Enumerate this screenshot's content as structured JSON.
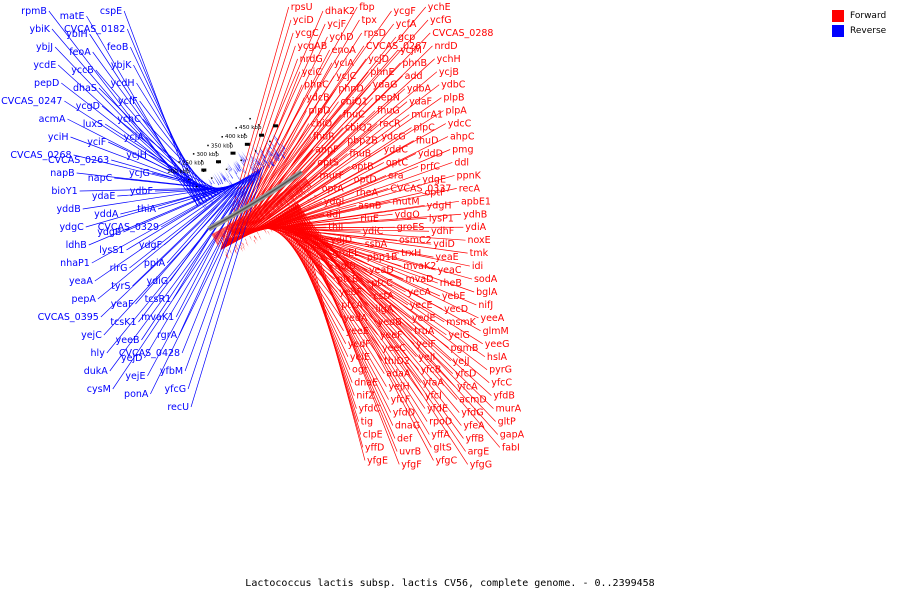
{
  "legend": {
    "forward": {
      "label": "Forward",
      "color": "#ff0000"
    },
    "reverse": {
      "label": "Reverse",
      "color": "#0000ff"
    }
  },
  "caption": "Lactococcus lactis subsp. lactis CV56, complete genome. - 0..2399458",
  "ruler": [
    "200 kbp",
    "250 kbp",
    "300 kbp",
    "350 kbp",
    "400 kbp",
    "450 kbp"
  ],
  "forward_genes": [
    "rpsU",
    "dhaK2",
    "fbp",
    "ycgF",
    "ychE",
    "yciD",
    "ycjF",
    "tpx",
    "ycfA",
    "ycfG",
    "ycgC",
    "ychD",
    "rpsD",
    "gcp",
    "CVCAS_0288",
    "ycgAB",
    "enoA",
    "CVCAS_0267",
    "ycjM",
    "nrdD",
    "nrdG",
    "yciA",
    "ycjD",
    "phnB",
    "ychH",
    "yciC",
    "ycjC",
    "phnE",
    "add",
    "ycjB",
    "phnC",
    "phnD",
    "ydaG",
    "ydbA",
    "ydbC",
    "ydcB",
    "cbiQ1",
    "pepN",
    "ydaF",
    "plpB",
    "plpD",
    "fhuC",
    "fhuG",
    "murA1",
    "plpA",
    "cbiO",
    "cbiQ2",
    "recR",
    "plpC",
    "ydcC",
    "fhuR",
    "pbp2B",
    "ydcG",
    "fhuD",
    "ahpC",
    "ahpF",
    "fhuB",
    "yddC",
    "yddD",
    "pmg",
    "optS",
    "optB",
    "optC",
    "prfC",
    "ddl",
    "murF",
    "optD",
    "era",
    "ydgE",
    "ppnK",
    "optA",
    "rheA",
    "CVCAS_0337",
    "optF",
    "recA",
    "ydgI",
    "asnB",
    "mutM",
    "ydgH",
    "apbE1",
    "ddi",
    "rluE",
    "ydgO",
    "lysP1",
    "ydhB",
    "thil",
    "ydiC",
    "groES",
    "ydhF",
    "ydiA",
    "ydjD",
    "ssbA",
    "osmC2",
    "ydiD",
    "noxE",
    "groEL",
    "pbp1B",
    "trxH",
    "yeaE",
    "tmk",
    "holB",
    "yeaD",
    "mvaK2",
    "yeaC",
    "idi",
    "ptcB",
    "ptcC",
    "mvaD",
    "rheB",
    "sodA",
    "yebF",
    "cstA",
    "yecA",
    "yebE",
    "bglA",
    "ptcA",
    "ligA",
    "yecE",
    "yecD",
    "nifJ",
    "yedA",
    "yedB",
    "yedE",
    "msmK",
    "yeeA",
    "yeeE",
    "yeeF",
    "truA",
    "yeiG",
    "glmM",
    "yedF",
    "yeeC",
    "yeiF",
    "pgmB",
    "yeeG",
    "yeiE",
    "thiD2",
    "yejI",
    "yejJ",
    "hslA",
    "ogt",
    "adaA",
    "yfcB",
    "yfcD",
    "pyrG",
    "dnaE",
    "yejH",
    "yfaA",
    "yfcA",
    "yfcC",
    "nifZ",
    "yfcF",
    "yfcI",
    "acmD",
    "yfdB",
    "yfdC",
    "yfdD",
    "yfdE",
    "yfdG",
    "murA",
    "tig",
    "dnaG",
    "rpoD",
    "yfeA",
    "gltP",
    "clpE",
    "def",
    "yffA",
    "yffB",
    "gapA",
    "yffD",
    "uvrB",
    "gltS",
    "argE",
    "fabI",
    "yfgE",
    "yfgF",
    "yfgC",
    "yfgG"
  ],
  "reverse_genes": [
    "cspE",
    "matE",
    "rpmB",
    "CVCAS_0182",
    "ybiH",
    "ybiK",
    "feoB",
    "feoA",
    "ybjJ",
    "ybjK",
    "yccB",
    "ycdE",
    "ycdH",
    "dhaS",
    "pepD",
    "ycfF",
    "ycgD",
    "CVCAS_0247",
    "ychC",
    "luxS",
    "acmA",
    "ycjA",
    "yciF",
    "yciH",
    "ycjH",
    "CVCAS_0263",
    "CVCAS_0268",
    "ycjG",
    "napC",
    "napB",
    "ydbF",
    "ydaE",
    "bioY1",
    "thiA",
    "yddA",
    "yddB",
    "CVCAS_0329",
    "ydgB",
    "ydgC",
    "ydgF",
    "lysS1",
    "ldhB",
    "ppiA",
    "rlrG",
    "nhaP1",
    "ydiG",
    "tyrS",
    "yeaA",
    "tcsR1",
    "yeaF",
    "pepA",
    "mvaK1",
    "tcsK1",
    "CVCAS_0395",
    "rgrA",
    "yeeB",
    "yejC",
    "CVCAS_0428",
    "yejD",
    "hly",
    "yfbM",
    "yejE",
    "dukA",
    "yfcG",
    "ponA",
    "cysM",
    "recU"
  ]
}
